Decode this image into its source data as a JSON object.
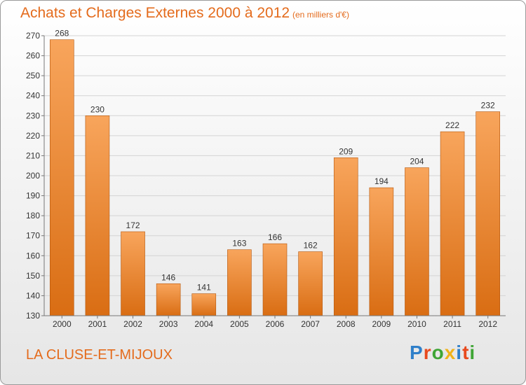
{
  "header": {
    "title": "Achats et Charges Externes 2000 à 2012",
    "subtitle": "(en milliers d'€)"
  },
  "footer": {
    "commune": "LA CLUSE-ET-MIJOUX",
    "logo_letters": [
      "P",
      "r",
      "o",
      "x",
      "i",
      "t",
      "i"
    ],
    "logo_colors": [
      "#2f7fc9",
      "#e8491d",
      "#3fa535",
      "#f0b21a",
      "#2f7fc9",
      "#e8491d",
      "#3fa535"
    ]
  },
  "colors": {
    "bar_light": "#f8a55c",
    "bar_dark": "#d96d13",
    "bar_edge": "#b4560c",
    "axis": "#777777",
    "grid": "#d4d4d4",
    "title": "#e46b1c"
  },
  "chart_data": {
    "type": "bar",
    "title": "Achats et Charges Externes 2000 à 2012",
    "categories": [
      "2000",
      "2001",
      "2002",
      "2003",
      "2004",
      "2005",
      "2006",
      "2007",
      "2008",
      "2009",
      "2010",
      "2011",
      "2012"
    ],
    "values": [
      268,
      230,
      172,
      146,
      141,
      163,
      166,
      162,
      209,
      194,
      204,
      222,
      232
    ],
    "ylim": [
      130,
      270
    ],
    "yticks": [
      130,
      140,
      150,
      160,
      170,
      180,
      190,
      200,
      210,
      220,
      230,
      240,
      250,
      260,
      270
    ],
    "grid": true,
    "data_labels": true
  }
}
